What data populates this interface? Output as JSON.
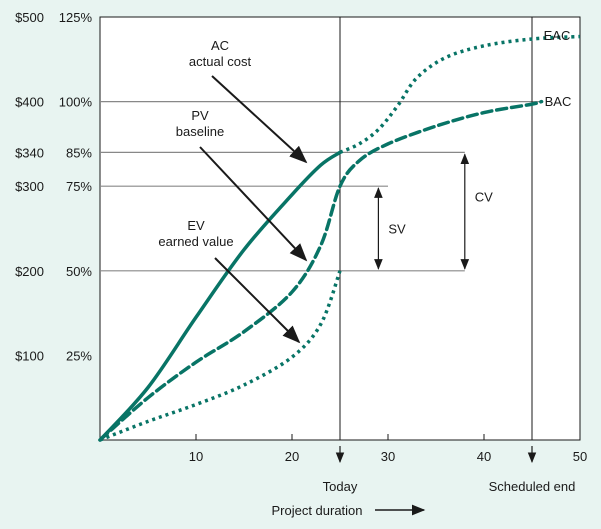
{
  "colors": {
    "background": "#e8f4f1",
    "series": "#087466",
    "ink": "#1a1a1a",
    "plot_background": "#ffffff",
    "reference_line": "#888888"
  },
  "chart_data": {
    "type": "line",
    "x_range": [
      0,
      50
    ],
    "y_range": [
      0,
      500
    ],
    "grid": false,
    "x_ticks": [
      10,
      20,
      30,
      40,
      50
    ],
    "y_ticks": [
      {
        "value": 500,
        "dollar": "$500",
        "percent": "125%"
      },
      {
        "value": 400,
        "dollar": "$400",
        "percent": "100%"
      },
      {
        "value": 340,
        "dollar": "$340",
        "percent": "85%"
      },
      {
        "value": 300,
        "dollar": "$300",
        "percent": "75%"
      },
      {
        "value": 200,
        "dollar": "$200",
        "percent": "50%"
      },
      {
        "value": 100,
        "dollar": "$100",
        "percent": "25%"
      }
    ],
    "reference_lines": [
      {
        "value": 400,
        "x_end": 46
      },
      {
        "value": 340,
        "x_end": 38
      },
      {
        "value": 300,
        "x_end": 30
      },
      {
        "value": 200,
        "x_end": 38
      }
    ],
    "vertical_markers": [
      {
        "x": 25,
        "label": "Today"
      },
      {
        "x": 45,
        "label": "Scheduled end"
      }
    ],
    "x_axis_title": "Project duration",
    "series": [
      {
        "name": "AC",
        "style": "solid",
        "points": [
          [
            0,
            0
          ],
          [
            5,
            62
          ],
          [
            10,
            145
          ],
          [
            15,
            225
          ],
          [
            20,
            290
          ],
          [
            23,
            325
          ],
          [
            25,
            340
          ]
        ],
        "projection": {
          "style": "dotted",
          "points": [
            [
              25,
              340
            ],
            [
              27,
              350
            ],
            [
              29,
              367
            ],
            [
              31,
              395
            ],
            [
              33,
              428
            ],
            [
              36,
              452
            ],
            [
              40,
              466
            ],
            [
              45,
              474
            ],
            [
              50,
              477
            ]
          ]
        }
      },
      {
        "name": "PV",
        "style": "dashed",
        "points": [
          [
            0,
            0
          ],
          [
            5,
            50
          ],
          [
            10,
            92
          ],
          [
            15,
            128
          ],
          [
            20,
            175
          ],
          [
            23,
            230
          ],
          [
            25,
            300
          ],
          [
            27,
            330
          ],
          [
            30,
            350
          ],
          [
            35,
            371
          ],
          [
            40,
            387
          ],
          [
            45,
            397
          ],
          [
            46,
            400
          ]
        ]
      },
      {
        "name": "EV",
        "style": "dotted",
        "points": [
          [
            0,
            0
          ],
          [
            5,
            22
          ],
          [
            10,
            42
          ],
          [
            15,
            65
          ],
          [
            20,
            98
          ],
          [
            23,
            137
          ],
          [
            25,
            200
          ]
        ]
      }
    ],
    "annotations": [
      {
        "key": "ac",
        "lines": [
          "AC",
          "actual cost"
        ]
      },
      {
        "key": "pv",
        "lines": [
          "PV",
          "baseline"
        ]
      },
      {
        "key": "ev",
        "lines": [
          "EV",
          "earned value"
        ]
      }
    ],
    "variance_labels": [
      {
        "key": "cv",
        "text": "CV",
        "from": 200,
        "to": 340,
        "x": 38
      },
      {
        "key": "sv",
        "text": "SV",
        "from": 200,
        "to": 300,
        "x": 29
      }
    ],
    "end_labels": [
      {
        "key": "eac",
        "text": "EAC"
      },
      {
        "key": "bac",
        "text": "BAC"
      }
    ]
  }
}
